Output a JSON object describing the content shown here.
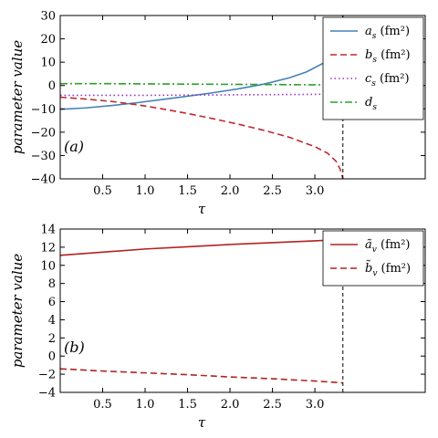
{
  "chart_data": [
    {
      "type": "line",
      "panel_label": "(a)",
      "xlabel": "τ",
      "ylabel": "parameter  value",
      "xlim": [
        0,
        4.3
      ],
      "ylim": [
        -40,
        30
      ],
      "xticks": [
        "0.5",
        "1.0",
        "1.5",
        "2.0",
        "2.5",
        "3.0"
      ],
      "xtick_values": [
        0.5,
        1.0,
        1.5,
        2.0,
        2.5,
        3.0
      ],
      "yticks": [
        "−40",
        "−30",
        "−20",
        "−10",
        "0",
        "10",
        "20",
        "30"
      ],
      "ytick_values": [
        -40,
        -30,
        -20,
        -10,
        0,
        10,
        20,
        30
      ],
      "grid": false,
      "legend_position": "top-right",
      "vertical_marker_x": 3.33,
      "series": [
        {
          "name": "a_s (fm²)",
          "legend_main": "a",
          "legend_sub": "s",
          "legend_unit": " (fm²)",
          "color": "#4682b4",
          "dash": "solid",
          "x": [
            0.0,
            0.3,
            0.6,
            0.9,
            1.2,
            1.5,
            1.8,
            2.1,
            2.4,
            2.7,
            2.9,
            3.1,
            3.2,
            3.27,
            3.31,
            3.33
          ],
          "y": [
            -10.2,
            -9.6,
            -8.6,
            -7.4,
            -6.0,
            -4.6,
            -3.1,
            -1.4,
            0.6,
            3.3,
            5.8,
            9.6,
            13.0,
            17.0,
            22.0,
            30.0
          ]
        },
        {
          "name": "b_s (fm²)",
          "legend_main": "b",
          "legend_sub": "s",
          "legend_unit": " (fm²)",
          "color": "#c0282e",
          "dash": "dashed",
          "x": [
            0.0,
            0.3,
            0.6,
            0.9,
            1.2,
            1.5,
            1.8,
            2.1,
            2.4,
            2.7,
            3.0,
            3.15,
            3.25,
            3.3,
            3.33
          ],
          "y": [
            -5.0,
            -5.8,
            -6.8,
            -8.2,
            -10.0,
            -12.0,
            -14.2,
            -16.6,
            -19.2,
            -22.2,
            -26.2,
            -29.0,
            -32.5,
            -36.0,
            -40.0
          ]
        },
        {
          "name": "c_s (fm²)",
          "legend_main": "c",
          "legend_sub": "s",
          "legend_unit": " (fm²)",
          "color": "#9932cc",
          "dash": "dotted",
          "x": [
            0.0,
            0.5,
            1.0,
            1.5,
            2.0,
            2.5,
            3.0,
            3.33
          ],
          "y": [
            -4.2,
            -4.2,
            -4.2,
            -4.1,
            -4.0,
            -3.9,
            -3.8,
            -3.6
          ]
        },
        {
          "name": "d_s",
          "legend_main": "d",
          "legend_sub": "s",
          "legend_unit": "",
          "color": "#2ca02c",
          "dash": "dashdot",
          "x": [
            0.0,
            0.5,
            1.0,
            1.5,
            2.0,
            2.5,
            3.0,
            3.33
          ],
          "y": [
            0.8,
            0.8,
            0.7,
            0.6,
            0.5,
            0.4,
            0.3,
            0.2
          ]
        }
      ]
    },
    {
      "type": "line",
      "panel_label": "(b)",
      "xlabel": "τ",
      "ylabel": "parameter  value",
      "xlim": [
        0,
        4.3
      ],
      "ylim": [
        -4,
        14
      ],
      "xticks": [
        "0.5",
        "1.0",
        "1.5",
        "2.0",
        "2.5",
        "3.0"
      ],
      "xtick_values": [
        0.5,
        1.0,
        1.5,
        2.0,
        2.5,
        3.0
      ],
      "yticks": [
        "−4",
        "−2",
        "0",
        "2",
        "4",
        "6",
        "8",
        "10",
        "12",
        "14"
      ],
      "ytick_values": [
        -4,
        -2,
        0,
        2,
        4,
        6,
        8,
        10,
        12,
        14
      ],
      "grid": false,
      "legend_position": "top-right",
      "vertical_marker_x": 3.33,
      "series": [
        {
          "name": "ã_v (fm²)",
          "legend_main": "ã",
          "legend_sub": "v",
          "legend_unit": " (fm²)",
          "color": "#b22222",
          "dash": "solid",
          "x": [
            0.0,
            0.5,
            1.0,
            1.5,
            2.0,
            2.5,
            3.0,
            3.33
          ],
          "y": [
            11.1,
            11.45,
            11.8,
            12.05,
            12.3,
            12.5,
            12.7,
            12.85
          ]
        },
        {
          "name": "b̃_v (fm²)",
          "legend_main": "b̃",
          "legend_sub": "v",
          "legend_unit": " (fm²)",
          "color": "#b22222",
          "dash": "dashed",
          "x": [
            0.0,
            0.5,
            1.0,
            1.5,
            2.0,
            2.5,
            3.0,
            3.33
          ],
          "y": [
            -1.4,
            -1.65,
            -1.85,
            -2.05,
            -2.3,
            -2.5,
            -2.75,
            -2.95
          ]
        }
      ]
    }
  ]
}
